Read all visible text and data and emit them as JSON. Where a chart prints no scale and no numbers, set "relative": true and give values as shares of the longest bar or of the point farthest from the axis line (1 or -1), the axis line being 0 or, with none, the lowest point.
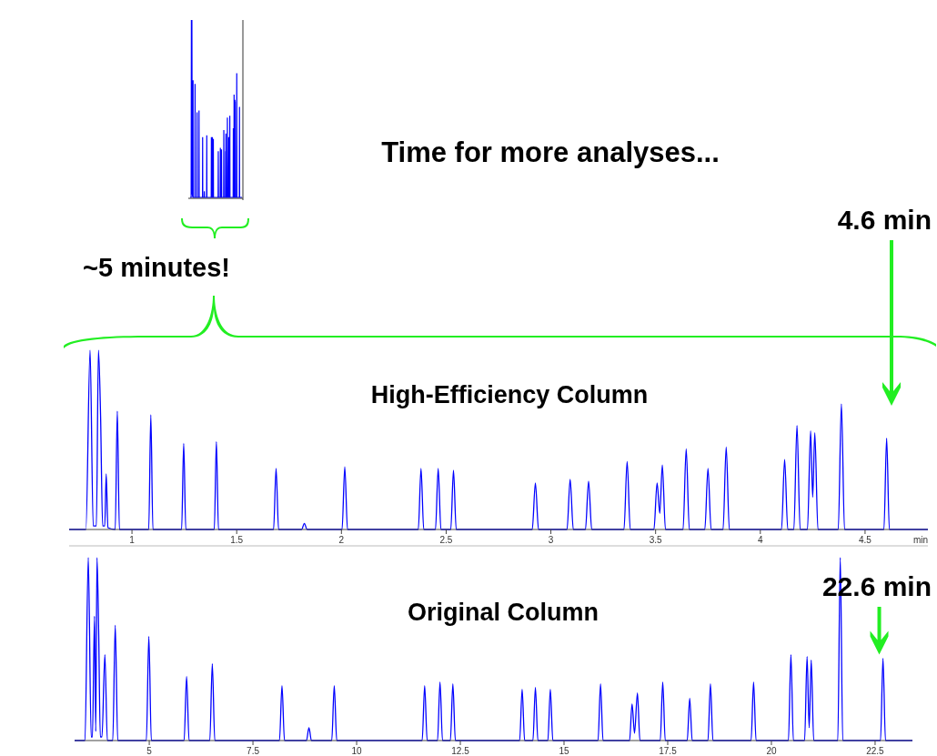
{
  "chart_data": [
    {
      "type": "line",
      "title": "High-Efficiency Column",
      "xlabel": "min",
      "relative": true,
      "xlim": [
        0.7,
        4.8
      ],
      "xticks": [
        1,
        1.5,
        2,
        2.5,
        3,
        3.5,
        4,
        4.5
      ],
      "annotations": [
        "Time for more analyses...",
        "~5 minutes!",
        "4.6 min"
      ],
      "series": [
        {
          "color": "#0000ff",
          "x": [
            0.7,
            0.78,
            0.8,
            0.815,
            0.83,
            0.84,
            0.85,
            0.86,
            0.87,
            0.877,
            0.885,
            0.92,
            0.93,
            0.94,
            1.08,
            1.09,
            1.1,
            1.237,
            1.247,
            1.257,
            1.393,
            1.403,
            1.413,
            1.676,
            1.688,
            1.7,
            1.81,
            1.823,
            1.836,
            2.003,
            2.016,
            2.029,
            2.367,
            2.38,
            2.393,
            2.449,
            2.462,
            2.475,
            2.522,
            2.535,
            2.548,
            2.911,
            2.926,
            2.941,
            3.077,
            3.092,
            3.107,
            3.165,
            3.18,
            3.195,
            3.349,
            3.364,
            3.379,
            3.492,
            3.507,
            3.52,
            3.532,
            3.547,
            3.631,
            3.646,
            3.661,
            3.735,
            3.75,
            3.765,
            3.822,
            3.837,
            3.852,
            4.101,
            4.116,
            4.131,
            4.16,
            4.175,
            4.19,
            4.225,
            4.24,
            4.25,
            4.26,
            4.275,
            4.372,
            4.387,
            4.402,
            4.59,
            4.603,
            4.616,
            4.8
          ],
          "values": [
            0,
            0,
            1,
            0.02,
            0.02,
            1,
            0.64,
            0.02,
            0.02,
            0.31,
            0.01,
            0,
            0.66,
            0,
            0,
            0.64,
            0,
            0,
            0.48,
            0,
            0,
            0.49,
            0,
            0,
            0.34,
            0,
            0,
            0.034,
            0,
            0,
            0.35,
            0,
            0,
            0.34,
            0,
            0,
            0.34,
            0,
            0,
            0.33,
            0,
            0,
            0.26,
            0,
            0,
            0.28,
            0,
            0,
            0.27,
            0,
            0,
            0.38,
            0,
            0,
            0.26,
            0.09,
            0.36,
            0,
            0,
            0.45,
            0,
            0,
            0.34,
            0,
            0,
            0.46,
            0,
            0,
            0.39,
            0,
            0,
            0.58,
            0,
            0,
            0.55,
            0.18,
            0.54,
            0,
            0,
            0.7,
            0,
            0,
            0.51,
            0,
            0
          ]
        }
      ]
    },
    {
      "type": "line",
      "title": "Original Column",
      "relative": true,
      "xlim": [
        3.2,
        23.4
      ],
      "xticks": [
        5,
        7.5,
        10,
        12.5,
        15,
        17.5,
        20,
        22.5
      ],
      "annotations": [
        {
          "text": "22.6 min",
          "x": 22.6,
          "y": 0.45
        }
      ],
      "series": [
        {
          "color": "#0000ff",
          "x": [
            3.2,
            3.45,
            3.53,
            3.6,
            3.63,
            3.68,
            3.71,
            3.74,
            3.78,
            3.82,
            3.86,
            3.93,
            3.99,
            4.12,
            4.18,
            4.24,
            4.93,
            4.99,
            5.05,
            5.84,
            5.9,
            5.96,
            6.46,
            6.52,
            6.58,
            8.14,
            8.2,
            8.26,
            8.79,
            8.85,
            8.91,
            9.4,
            9.46,
            9.52,
            11.58,
            11.64,
            11.7,
            11.95,
            12.01,
            12.07,
            12.26,
            12.32,
            12.38,
            13.93,
            13.99,
            14.05,
            14.25,
            14.31,
            14.37,
            14.61,
            14.67,
            14.73,
            15.82,
            15.88,
            15.94,
            16.58,
            16.64,
            16.7,
            16.77,
            16.83,
            17.32,
            17.38,
            17.44,
            17.97,
            18.03,
            18.09,
            18.47,
            18.53,
            18.59,
            19.51,
            19.57,
            19.63,
            20.41,
            20.47,
            20.53,
            20.8,
            20.86,
            20.91,
            20.96,
            21.02,
            21.6,
            21.66,
            21.72,
            22.63,
            22.69,
            22.75,
            23.4
          ],
          "values": [
            0,
            0,
            1,
            0.02,
            0.02,
            0.68,
            0.05,
            1,
            0.6,
            0.02,
            0.02,
            0.47,
            0,
            0,
            0.63,
            0,
            0,
            0.57,
            0,
            0,
            0.35,
            0,
            0,
            0.42,
            0,
            0,
            0.3,
            0,
            0,
            0.07,
            0,
            0,
            0.3,
            0,
            0,
            0.3,
            0,
            0,
            0.32,
            0,
            0,
            0.31,
            0,
            0,
            0.28,
            0,
            0,
            0.29,
            0,
            0,
            0.28,
            0,
            0,
            0.31,
            0,
            0,
            0.2,
            0.04,
            0.26,
            0,
            0,
            0.32,
            0,
            0,
            0.23,
            0,
            0,
            0.31,
            0,
            0,
            0.32,
            0,
            0,
            0.47,
            0,
            0,
            0.46,
            0.07,
            0.44,
            0,
            0,
            1,
            0,
            0,
            0.45,
            0,
            0
          ]
        }
      ]
    }
  ]
}
